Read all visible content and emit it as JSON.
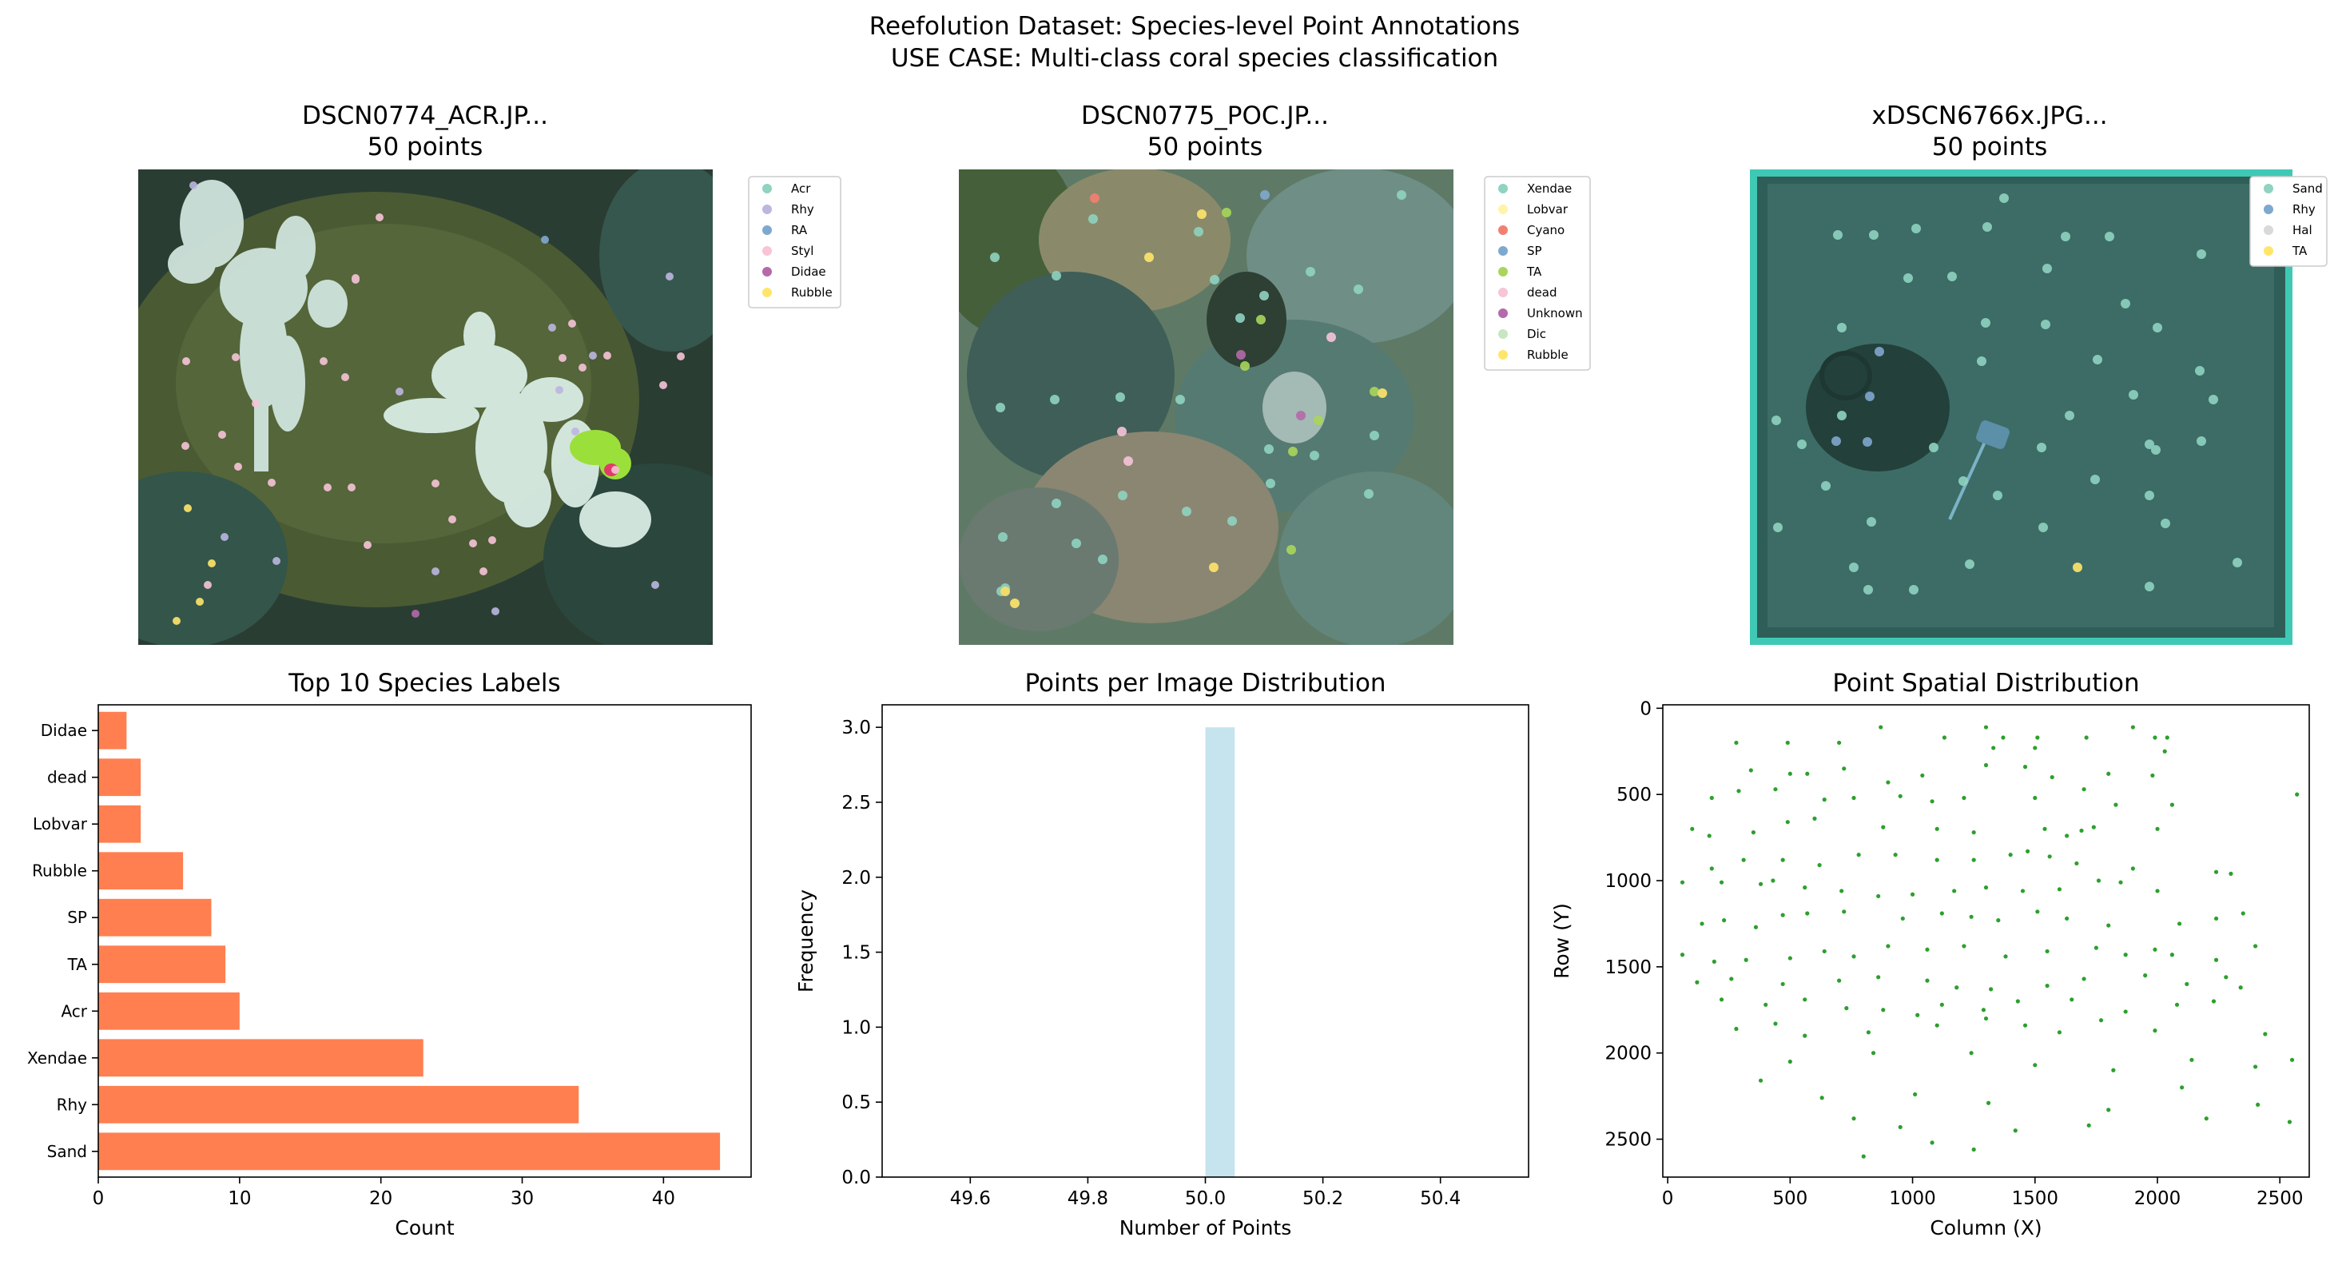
{
  "figure": {
    "suptitle_line1": "Reefolution Dataset: Species-level Point Annotations",
    "suptitle_line2": "USE CASE: Multi-class coral species classification"
  },
  "images": [
    {
      "title": "DSCN0774_ACR.JP...",
      "subtitle": "50 points",
      "legend": [
        {
          "label": "Acr",
          "color": "#8fd3c0"
        },
        {
          "label": "Rhy",
          "color": "#bcb6e0"
        },
        {
          "label": "RA",
          "color": "#7fa8cf"
        },
        {
          "label": "Styl",
          "color": "#f7c4d8"
        },
        {
          "label": "Didae",
          "color": "#b56aa9"
        },
        {
          "label": "Rubble",
          "color": "#ffe66b"
        }
      ]
    },
    {
      "title": "DSCN0775_POC.JP...",
      "subtitle": "50 points",
      "legend": [
        {
          "label": "Xendae",
          "color": "#8fd3c0"
        },
        {
          "label": "Lobvar",
          "color": "#fff4a8"
        },
        {
          "label": "Cyano",
          "color": "#f28072"
        },
        {
          "label": "SP",
          "color": "#7fa8cf"
        },
        {
          "label": "TA",
          "color": "#a9d65a"
        },
        {
          "label": "dead",
          "color": "#f7c4d8"
        },
        {
          "label": "Unknown",
          "color": "#b56aa9"
        },
        {
          "label": "Dic",
          "color": "#c8e6c2"
        },
        {
          "label": "Rubble",
          "color": "#ffe66b"
        }
      ]
    },
    {
      "title": "xDSCN6766x.JPG...",
      "subtitle": "50 points",
      "legend": [
        {
          "label": "Sand",
          "color": "#8fd3c0"
        },
        {
          "label": "Rhy",
          "color": "#7fa8cf"
        },
        {
          "label": "Hal",
          "color": "#d9d9d9"
        },
        {
          "label": "TA",
          "color": "#ffe66b"
        }
      ]
    }
  ],
  "chart_data": [
    {
      "type": "bar",
      "orientation": "horizontal",
      "title": "Top 10 Species Labels",
      "xlabel": "Count",
      "ylabel": "",
      "categories": [
        "Sand",
        "Rhy",
        "Xendae",
        "Acr",
        "TA",
        "SP",
        "Rubble",
        "Lobvar",
        "dead",
        "Didae"
      ],
      "values": [
        44,
        34,
        23,
        10,
        9,
        8,
        6,
        3,
        3,
        2
      ],
      "xlim": [
        0,
        46.2
      ],
      "xticks": [
        0,
        10,
        20,
        30,
        40
      ],
      "color": "#ff7f50"
    },
    {
      "type": "bar",
      "subtype": "histogram",
      "title": "Points per Image Distribution",
      "xlabel": "Number of Points",
      "ylabel": "Frequency",
      "bins": [
        {
          "x0": 50.0,
          "x1": 50.05,
          "count": 3
        }
      ],
      "xlim": [
        49.45,
        50.55
      ],
      "ylim": [
        0,
        3.15
      ],
      "xticks": [
        "49.6",
        "49.8",
        "50.0",
        "50.2",
        "50.4"
      ],
      "yticks": [
        "0.0",
        "0.5",
        "1.0",
        "1.5",
        "2.0",
        "2.5",
        "3.0"
      ],
      "color": "#add8e6"
    },
    {
      "type": "scatter",
      "title": "Point Spatial Distribution",
      "xlabel": "Column (X)",
      "ylabel": "Row (Y)",
      "xlim": [
        -20,
        2620
      ],
      "ylim": [
        2720,
        -20
      ],
      "y_inverted": true,
      "xticks": [
        0,
        500,
        1000,
        1500,
        2000,
        2500
      ],
      "yticks": [
        0,
        500,
        1000,
        1500,
        2000,
        2500
      ],
      "color": "#2ca02c",
      "points": [
        [
          870,
          110
        ],
        [
          1300,
          110
        ],
        [
          1900,
          110
        ],
        [
          1130,
          170
        ],
        [
          1370,
          170
        ],
        [
          1510,
          170
        ],
        [
          1710,
          170
        ],
        [
          1990,
          170
        ],
        [
          2040,
          170
        ],
        [
          280,
          200
        ],
        [
          490,
          200
        ],
        [
          700,
          200
        ],
        [
          1330,
          230
        ],
        [
          1500,
          230
        ],
        [
          2030,
          250
        ],
        [
          340,
          360
        ],
        [
          500,
          380
        ],
        [
          570,
          380
        ],
        [
          720,
          350
        ],
        [
          900,
          430
        ],
        [
          1040,
          390
        ],
        [
          1300,
          330
        ],
        [
          1460,
          340
        ],
        [
          1570,
          400
        ],
        [
          1800,
          380
        ],
        [
          1980,
          390
        ],
        [
          180,
          520
        ],
        [
          290,
          480
        ],
        [
          440,
          470
        ],
        [
          640,
          530
        ],
        [
          760,
          520
        ],
        [
          950,
          510
        ],
        [
          1080,
          540
        ],
        [
          1210,
          520
        ],
        [
          1500,
          520
        ],
        [
          1700,
          470
        ],
        [
          1830,
          560
        ],
        [
          2060,
          560
        ],
        [
          2570,
          500
        ],
        [
          100,
          700
        ],
        [
          170,
          740
        ],
        [
          350,
          720
        ],
        [
          490,
          660
        ],
        [
          600,
          640
        ],
        [
          880,
          690
        ],
        [
          1100,
          700
        ],
        [
          1250,
          720
        ],
        [
          1540,
          700
        ],
        [
          1630,
          740
        ],
        [
          1690,
          710
        ],
        [
          1740,
          690
        ],
        [
          2000,
          700
        ],
        [
          180,
          930
        ],
        [
          310,
          880
        ],
        [
          470,
          880
        ],
        [
          620,
          910
        ],
        [
          780,
          850
        ],
        [
          930,
          850
        ],
        [
          1100,
          880
        ],
        [
          1250,
          880
        ],
        [
          1400,
          850
        ],
        [
          1470,
          830
        ],
        [
          1560,
          860
        ],
        [
          1670,
          900
        ],
        [
          1900,
          930
        ],
        [
          2240,
          950
        ],
        [
          2300,
          960
        ],
        [
          60,
          1010
        ],
        [
          220,
          1010
        ],
        [
          380,
          1020
        ],
        [
          430,
          1000
        ],
        [
          560,
          1040
        ],
        [
          710,
          1060
        ],
        [
          860,
          1090
        ],
        [
          1000,
          1080
        ],
        [
          1170,
          1060
        ],
        [
          1300,
          1040
        ],
        [
          1450,
          1060
        ],
        [
          1600,
          1050
        ],
        [
          1760,
          1000
        ],
        [
          1850,
          1010
        ],
        [
          2000,
          1060
        ],
        [
          140,
          1250
        ],
        [
          230,
          1230
        ],
        [
          360,
          1270
        ],
        [
          470,
          1200
        ],
        [
          570,
          1190
        ],
        [
          720,
          1180
        ],
        [
          960,
          1220
        ],
        [
          1120,
          1190
        ],
        [
          1240,
          1210
        ],
        [
          1350,
          1230
        ],
        [
          1510,
          1180
        ],
        [
          1630,
          1220
        ],
        [
          1800,
          1260
        ],
        [
          2090,
          1250
        ],
        [
          2240,
          1220
        ],
        [
          2350,
          1190
        ],
        [
          60,
          1430
        ],
        [
          190,
          1470
        ],
        [
          320,
          1460
        ],
        [
          500,
          1450
        ],
        [
          640,
          1410
        ],
        [
          760,
          1440
        ],
        [
          900,
          1380
        ],
        [
          1060,
          1400
        ],
        [
          1210,
          1380
        ],
        [
          1380,
          1440
        ],
        [
          1550,
          1410
        ],
        [
          1750,
          1390
        ],
        [
          1870,
          1430
        ],
        [
          1990,
          1400
        ],
        [
          2060,
          1430
        ],
        [
          2240,
          1460
        ],
        [
          2400,
          1380
        ],
        [
          120,
          1590
        ],
        [
          260,
          1570
        ],
        [
          470,
          1600
        ],
        [
          700,
          1580
        ],
        [
          860,
          1560
        ],
        [
          1060,
          1580
        ],
        [
          1180,
          1620
        ],
        [
          1320,
          1630
        ],
        [
          1550,
          1610
        ],
        [
          1700,
          1570
        ],
        [
          1950,
          1550
        ],
        [
          2120,
          1600
        ],
        [
          2280,
          1560
        ],
        [
          2340,
          1620
        ],
        [
          220,
          1690
        ],
        [
          400,
          1720
        ],
        [
          560,
          1690
        ],
        [
          730,
          1740
        ],
        [
          880,
          1750
        ],
        [
          1020,
          1780
        ],
        [
          1120,
          1720
        ],
        [
          1290,
          1750
        ],
        [
          1430,
          1700
        ],
        [
          1650,
          1690
        ],
        [
          1870,
          1760
        ],
        [
          2080,
          1720
        ],
        [
          2230,
          1700
        ],
        [
          280,
          1860
        ],
        [
          440,
          1830
        ],
        [
          560,
          1900
        ],
        [
          820,
          1880
        ],
        [
          1100,
          1840
        ],
        [
          1300,
          1800
        ],
        [
          1460,
          1840
        ],
        [
          1600,
          1880
        ],
        [
          1770,
          1810
        ],
        [
          1990,
          1870
        ],
        [
          2440,
          1890
        ],
        [
          500,
          2050
        ],
        [
          840,
          2000
        ],
        [
          1240,
          2000
        ],
        [
          1500,
          2070
        ],
        [
          1820,
          2100
        ],
        [
          2140,
          2040
        ],
        [
          2400,
          2080
        ],
        [
          2550,
          2040
        ],
        [
          380,
          2160
        ],
        [
          630,
          2260
        ],
        [
          1010,
          2240
        ],
        [
          1310,
          2290
        ],
        [
          1800,
          2330
        ],
        [
          2100,
          2200
        ],
        [
          2410,
          2300
        ],
        [
          760,
          2380
        ],
        [
          950,
          2430
        ],
        [
          1420,
          2450
        ],
        [
          1720,
          2420
        ],
        [
          2200,
          2380
        ],
        [
          2540,
          2400
        ],
        [
          800,
          2600
        ],
        [
          1080,
          2520
        ],
        [
          1250,
          2560
        ]
      ]
    }
  ]
}
